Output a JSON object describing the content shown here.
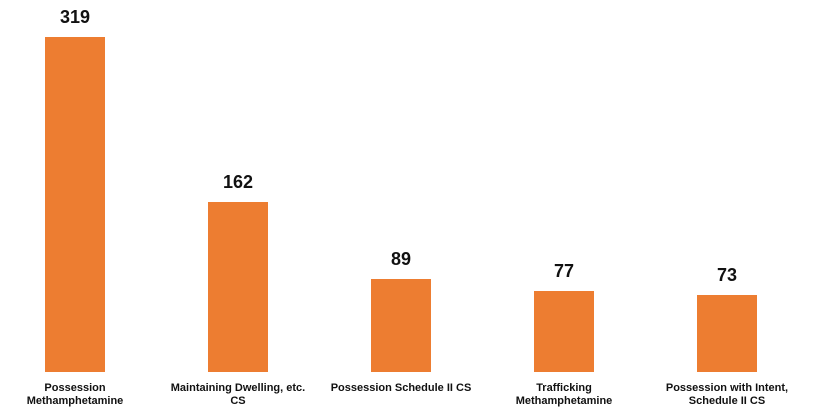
{
  "chart_data": {
    "type": "bar",
    "categories": [
      "Possession Methamphetamine",
      "Maintaining Dwelling, etc. CS",
      "Possession Schedule II CS",
      "Trafficking Methamphetamine",
      "Possession with Intent, Schedule II CS"
    ],
    "values": [
      319,
      162,
      89,
      77,
      73
    ],
    "color": "#ed7d31"
  }
}
